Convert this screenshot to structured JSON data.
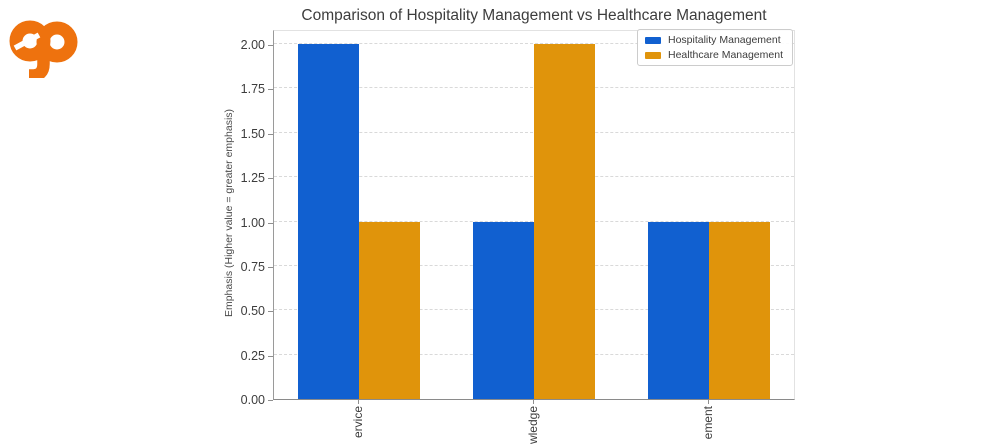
{
  "logo": {
    "text": "ep",
    "color": "#ee720e"
  },
  "chart_data": {
    "type": "bar",
    "title": "Comparison of Hospitality Management vs Healthcare Management",
    "ylabel": "Emphasis (Higher value = greater emphasis)",
    "xlabel": "",
    "categories": [
      "ervice",
      "wledge",
      "ement"
    ],
    "series": [
      {
        "name": "Hospitality Management",
        "color": "#1160d0",
        "values": [
          2,
          1,
          1
        ]
      },
      {
        "name": "Healthcare Management",
        "color": "#e0940b",
        "values": [
          1,
          2,
          1
        ]
      }
    ],
    "ylim": [
      0,
      2.08
    ],
    "yticks": [
      "0.00",
      "0.25",
      "0.50",
      "0.75",
      "1.00",
      "1.25",
      "1.50",
      "1.75",
      "2.00"
    ],
    "grid": "horizontal-dashed",
    "legend_position": "upper-right"
  },
  "colors": {
    "gridline": "#d9d9d9",
    "axis": "#8f8f8f",
    "background": "#ffffff",
    "text": "#3d3d3d"
  }
}
